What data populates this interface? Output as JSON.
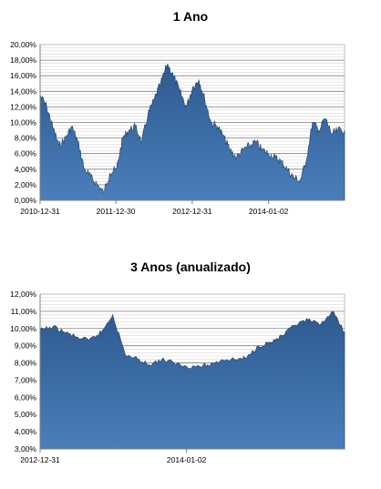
{
  "chart_data": [
    {
      "type": "area",
      "title": "1 Ano",
      "xlabel": "",
      "ylabel": "",
      "ylim": [
        0,
        20
      ],
      "y_ticks": [
        "0,00%",
        "2,00%",
        "4,00%",
        "6,00%",
        "8,00%",
        "10,00%",
        "12,00%",
        "14,00%",
        "16,00%",
        "18,00%",
        "20,00%"
      ],
      "x_ticks": [
        "2010-12-31",
        "2011-12-30",
        "2012-12-31",
        "2014-01-02"
      ],
      "x_range": [
        "2010-12-31",
        "2015-01-02"
      ],
      "grid": true,
      "color": "#4a7ebb",
      "x": [
        "2010-12-31",
        "2011-02-01",
        "2011-03-01",
        "2011-04-01",
        "2011-05-02",
        "2011-06-01",
        "2011-07-01",
        "2011-08-01",
        "2011-09-01",
        "2011-10-03",
        "2011-11-01",
        "2011-12-01",
        "2012-01-02",
        "2012-02-01",
        "2012-03-01",
        "2012-04-02",
        "2012-05-02",
        "2012-06-01",
        "2012-07-02",
        "2012-08-01",
        "2012-09-03",
        "2012-10-01",
        "2012-11-01",
        "2012-12-03",
        "2013-01-02",
        "2013-02-01",
        "2013-03-01",
        "2013-04-01",
        "2013-05-02",
        "2013-06-03",
        "2013-07-01",
        "2013-08-01",
        "2013-09-02",
        "2013-10-01",
        "2013-11-01",
        "2013-12-02",
        "2014-01-02",
        "2014-02-03",
        "2014-03-03",
        "2014-04-01",
        "2014-05-02",
        "2014-06-02",
        "2014-07-01",
        "2014-08-01",
        "2014-09-01",
        "2014-10-01",
        "2014-11-03",
        "2014-12-01",
        "2015-01-02"
      ],
      "y": [
        13.5,
        12.0,
        9.5,
        7.0,
        8.0,
        9.5,
        7.5,
        4.0,
        3.0,
        2.0,
        1.0,
        3.5,
        4.0,
        8.0,
        9.0,
        9.5,
        7.5,
        11.0,
        13.0,
        15.0,
        17.5,
        16.0,
        14.0,
        12.0,
        14.5,
        15.5,
        13.0,
        10.0,
        9.5,
        8.0,
        6.5,
        5.5,
        6.5,
        7.0,
        7.5,
        6.5,
        6.0,
        5.5,
        5.0,
        4.0,
        3.0,
        2.5,
        5.0,
        10.0,
        9.0,
        10.5,
        8.5,
        9.0,
        9.0
      ]
    },
    {
      "type": "area",
      "title": "3 Anos (anualizado)",
      "xlabel": "",
      "ylabel": "",
      "ylim": [
        3,
        12
      ],
      "y_ticks": [
        "3,00%",
        "4,00%",
        "5,00%",
        "6,00%",
        "7,00%",
        "8,00%",
        "9,00%",
        "10,00%",
        "11,00%",
        "12,00%"
      ],
      "x_ticks": [
        "2012-12-31",
        "2014-01-02"
      ],
      "x_range": [
        "2012-12-31",
        "2015-02-02"
      ],
      "grid": true,
      "color": "#4a7ebb",
      "x": [
        "2012-12-31",
        "2013-02-01",
        "2013-03-01",
        "2013-04-01",
        "2013-05-02",
        "2013-06-03",
        "2013-07-01",
        "2013-08-01",
        "2013-09-02",
        "2013-10-01",
        "2013-11-01",
        "2013-12-02",
        "2014-01-02",
        "2014-02-03",
        "2014-03-03",
        "2014-04-01",
        "2014-05-02",
        "2014-06-02",
        "2014-07-01",
        "2014-08-01",
        "2014-09-01",
        "2014-10-01",
        "2014-11-03",
        "2014-12-01",
        "2015-01-02",
        "2015-02-02"
      ],
      "y": [
        9.9,
        10.1,
        9.8,
        9.5,
        9.3,
        9.8,
        10.8,
        8.5,
        8.2,
        7.9,
        8.2,
        8.0,
        7.8,
        7.8,
        7.9,
        8.2,
        8.2,
        8.3,
        9.0,
        9.2,
        9.6,
        10.2,
        10.5,
        10.2,
        11.0,
        9.8
      ]
    }
  ]
}
